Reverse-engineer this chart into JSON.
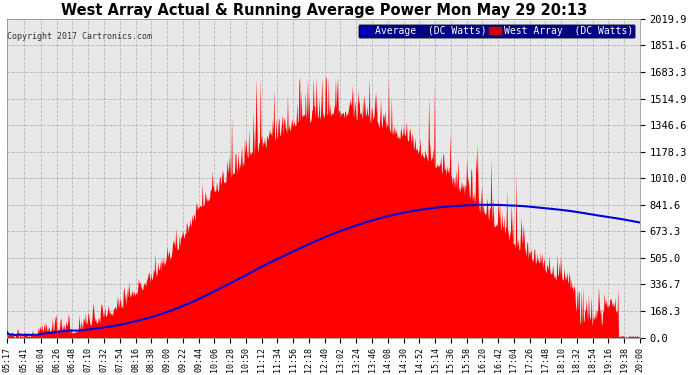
{
  "title": "West Array Actual & Running Average Power Mon May 29 20:13",
  "copyright": "Copyright 2017 Cartronics.com",
  "legend_labels": [
    "Average  (DC Watts)",
    "West Array  (DC Watts)"
  ],
  "legend_facecolors": [
    "#0000cc",
    "#cc0000"
  ],
  "bg_color": "#ffffff",
  "plot_bg": "#e8e8e8",
  "grid_color": "#aaaaaa",
  "title_color": "#000000",
  "copyright_color": "#333333",
  "ytick_color": "#000000",
  "xtick_color": "#000000",
  "ymin": 0.0,
  "ymax": 2019.9,
  "ytick_values": [
    0.0,
    168.3,
    336.7,
    505.0,
    673.3,
    841.6,
    1010.0,
    1178.3,
    1346.6,
    1514.9,
    1683.3,
    1851.6,
    2019.9
  ],
  "time_labels": [
    "05:17",
    "05:41",
    "06:04",
    "06:26",
    "06:48",
    "07:10",
    "07:32",
    "07:54",
    "08:16",
    "08:38",
    "09:00",
    "09:22",
    "09:44",
    "10:06",
    "10:28",
    "10:50",
    "11:12",
    "11:34",
    "11:56",
    "12:18",
    "12:40",
    "13:02",
    "13:24",
    "13:46",
    "14:08",
    "14:30",
    "14:52",
    "15:14",
    "15:36",
    "15:58",
    "16:20",
    "16:42",
    "17:04",
    "17:26",
    "17:48",
    "18:10",
    "18:32",
    "18:54",
    "19:16",
    "19:38",
    "20:00"
  ]
}
